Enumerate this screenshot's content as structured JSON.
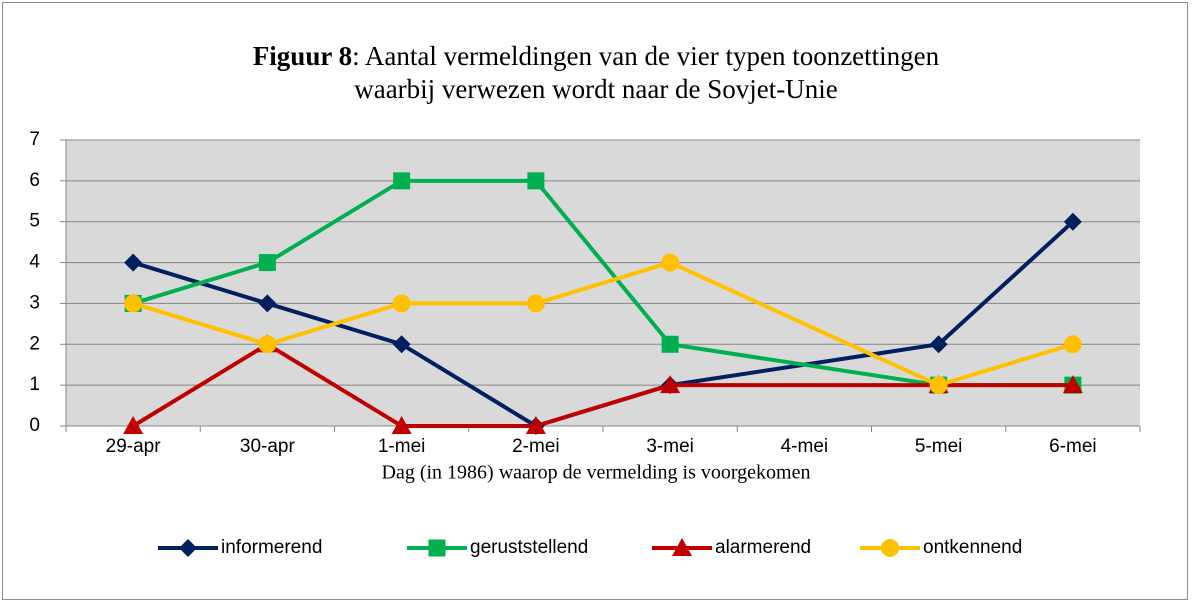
{
  "chart_data": {
    "type": "line",
    "title": {
      "bold": "Figuur 8",
      "text": ": Aantal vermeldingen van de vier typen toonzettingen waarbij verwezen wordt naar de Sovjet-Unie"
    },
    "x_label": "Dag (in 1986) waarop de vermelding is voorgekomen",
    "categories": [
      "29-apr",
      "30-apr",
      "1-mei",
      "2-mei",
      "3-mei",
      "4-mei",
      "5-mei",
      "6-mei"
    ],
    "series": [
      {
        "name": "informerend",
        "color": "#002060",
        "marker": "diamond",
        "values": [
          4,
          3,
          2,
          0,
          1,
          null,
          2,
          5
        ]
      },
      {
        "name": "geruststellend",
        "color": "#00b050",
        "marker": "square",
        "values": [
          3,
          4,
          6,
          6,
          2,
          null,
          1,
          1
        ]
      },
      {
        "name": "alarmerend",
        "color": "#c00000",
        "marker": "triangle",
        "values": [
          0,
          2,
          0,
          0,
          1,
          null,
          1,
          1
        ]
      },
      {
        "name": "ontkennend",
        "color": "#ffc000",
        "marker": "circle",
        "values": [
          3,
          2,
          3,
          3,
          4,
          null,
          1,
          2
        ]
      }
    ],
    "ylim": [
      0,
      7
    ],
    "yticks": [
      0,
      1,
      2,
      3,
      4,
      5,
      6,
      7
    ],
    "grid": true,
    "span_gaps": true,
    "plot_background": "#d9d9d9",
    "legend": "bottom"
  }
}
